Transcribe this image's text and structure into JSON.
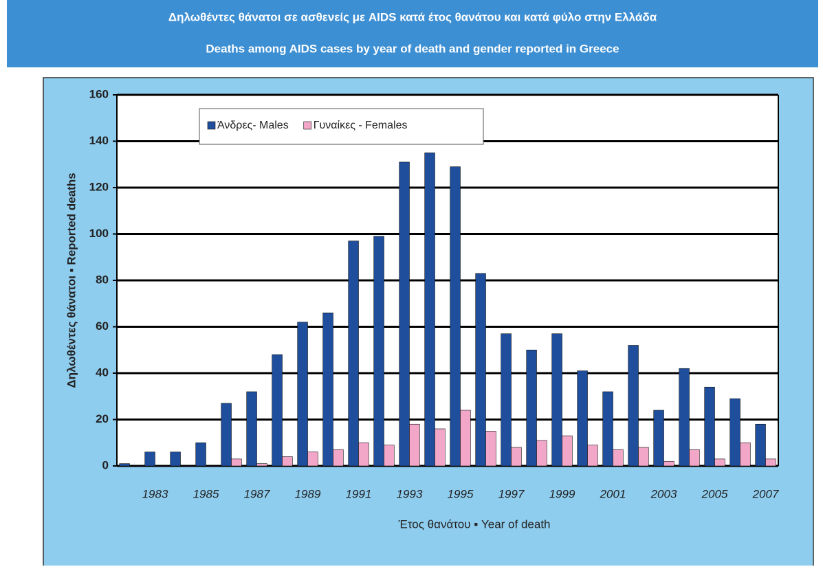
{
  "chart_data": {
    "type": "bar",
    "title": "Δηλωθέντες θάνατοι σε ασθενείς με AIDS κατά έτος θανάτου και κατά φύλο στην Ελλάδα",
    "subtitle": "Deaths among AIDS cases by year of death and gender reported in Greece",
    "x_label": "Έτος θανάτου ▪ Year of death",
    "y_label": "Δηλωθέντες θάνατοι ▪ Reported deaths",
    "categories": [
      null,
      "1983",
      null,
      "1985",
      null,
      "1987",
      null,
      "1989",
      null,
      "1991",
      null,
      "1993",
      null,
      "1995",
      null,
      "1997",
      null,
      "1999",
      null,
      "2001",
      null,
      "2003",
      null,
      "2005",
      null,
      "2007"
    ],
    "series": [
      {
        "name": "Άνδρες- Males",
        "color": "#1f4e9c",
        "values": [
          1,
          6,
          6,
          10,
          27,
          32,
          48,
          62,
          66,
          97,
          99,
          131,
          135,
          129,
          83,
          57,
          50,
          57,
          41,
          32,
          52,
          24,
          42,
          34,
          29,
          18
        ]
      },
      {
        "name": "Γυναίκες - Females",
        "color": "#f2a6c8",
        "values": [
          0,
          0,
          0,
          0,
          3,
          1,
          4,
          6,
          7,
          10,
          9,
          18,
          16,
          24,
          15,
          8,
          11,
          13,
          9,
          7,
          8,
          2,
          7,
          3,
          10,
          3
        ]
      }
    ],
    "ylim": [
      0,
      160
    ],
    "yticks": [
      0,
      20,
      40,
      60,
      80,
      100,
      120,
      140,
      160
    ],
    "grid": true
  }
}
